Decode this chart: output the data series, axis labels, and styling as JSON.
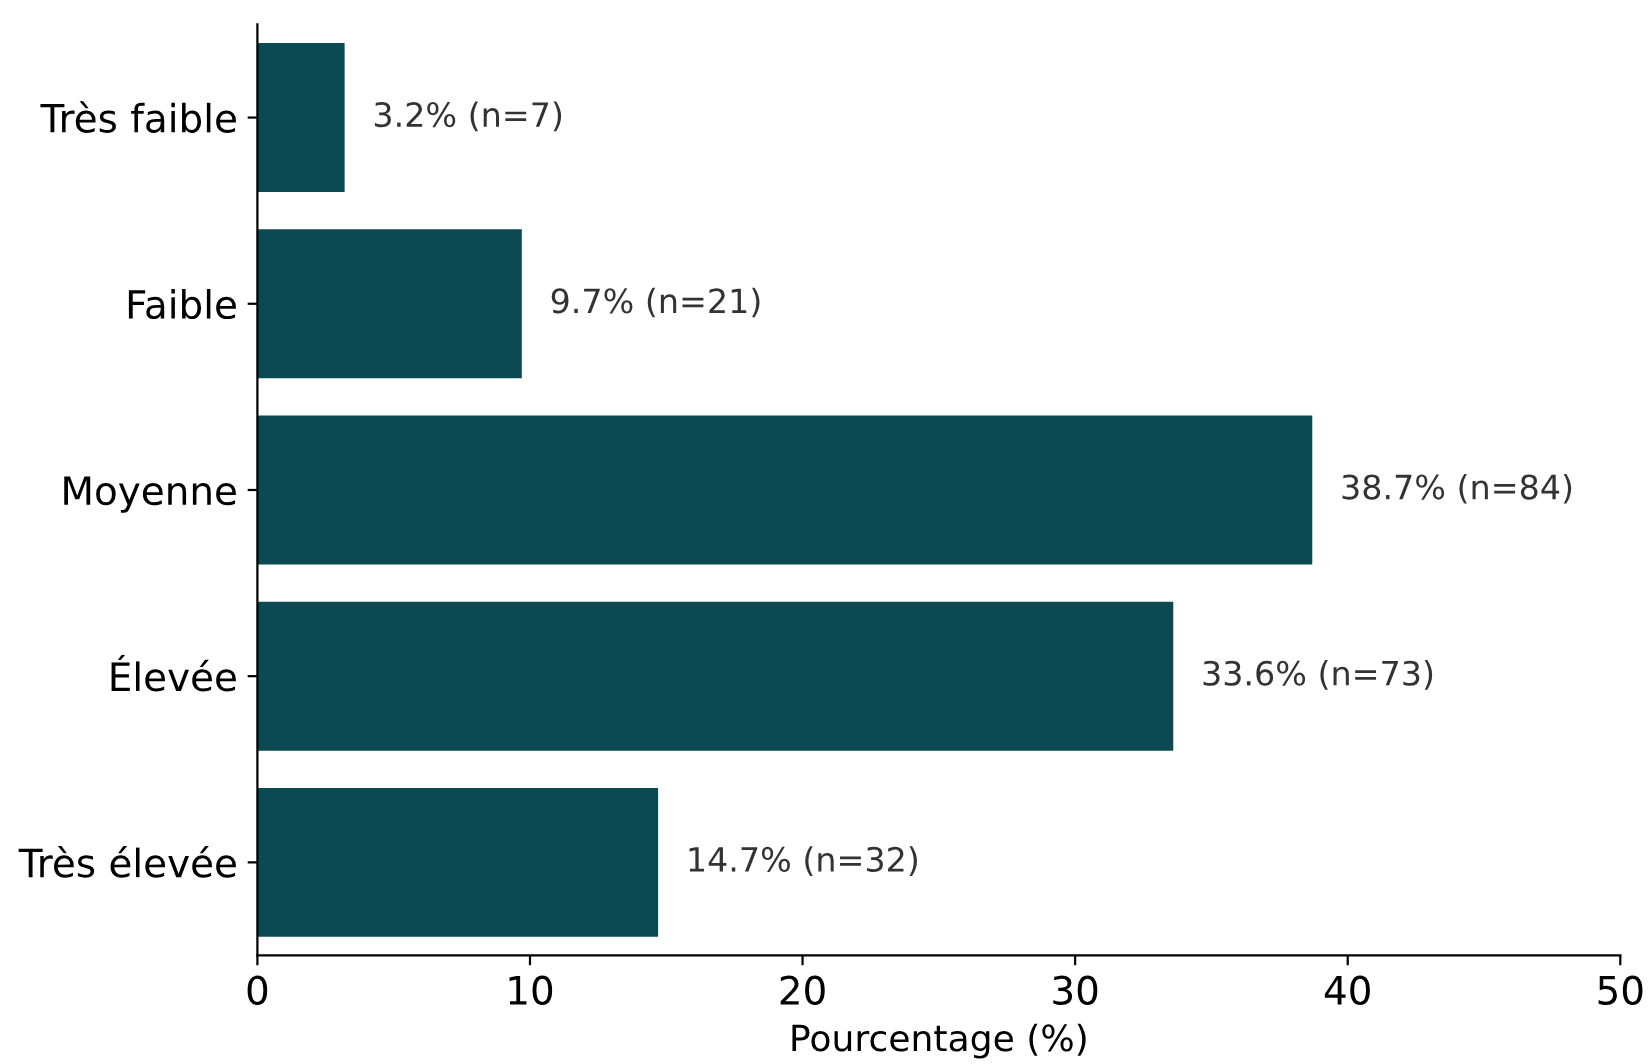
{
  "chart_data": {
    "type": "bar",
    "orientation": "horizontal",
    "categories": [
      "Très faible",
      "Faible",
      "Moyenne",
      "Élevée",
      "Très élevée"
    ],
    "values": [
      3.2,
      9.7,
      38.7,
      33.6,
      14.7
    ],
    "value_labels": [
      "3.2% (n=7)",
      "9.7% (n=21)",
      "38.7% (n=84)",
      "33.6% (n=73)",
      "14.7% (n=32)"
    ],
    "color": "#0b4a52",
    "xlabel": "Pourcentage (%)",
    "xlim": [
      0,
      50
    ],
    "xticks": [
      0,
      10,
      20,
      30,
      40,
      50
    ],
    "grid": false
  }
}
